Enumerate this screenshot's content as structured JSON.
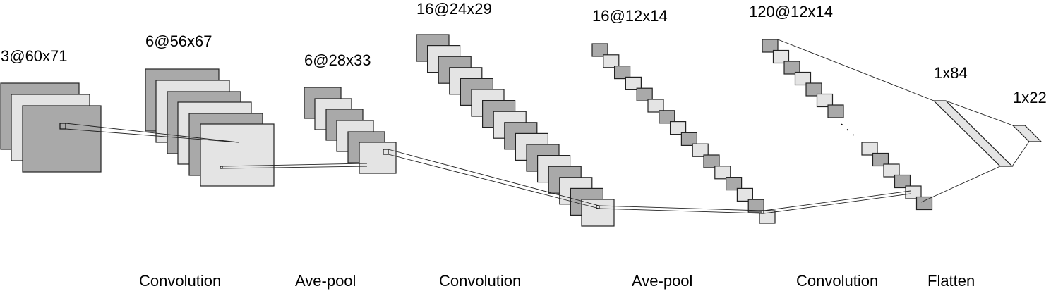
{
  "layers": [
    {
      "id": "input",
      "label": "3@60x71"
    },
    {
      "id": "conv1",
      "label": "6@56x67"
    },
    {
      "id": "pool1",
      "label": "6@28x33"
    },
    {
      "id": "conv2",
      "label": "16@24x29"
    },
    {
      "id": "pool2",
      "label": "16@12x14"
    },
    {
      "id": "conv3",
      "label": "120@12x14"
    },
    {
      "id": "fc1",
      "label": "1x84"
    },
    {
      "id": "fc2",
      "label": "1x22"
    }
  ],
  "operations": [
    {
      "id": "op-conv1",
      "label": "Convolution"
    },
    {
      "id": "op-pool1",
      "label": "Ave-pool"
    },
    {
      "id": "op-conv2",
      "label": "Convolution"
    },
    {
      "id": "op-pool2",
      "label": "Ave-pool"
    },
    {
      "id": "op-conv3",
      "label": "Convolution"
    },
    {
      "id": "op-flatten",
      "label": "Flatten"
    }
  ],
  "ellipsis": "· · ·",
  "colors": {
    "map_dark": "#a9a9a9",
    "map_light": "#e4e4e4",
    "stroke": "#222222"
  }
}
